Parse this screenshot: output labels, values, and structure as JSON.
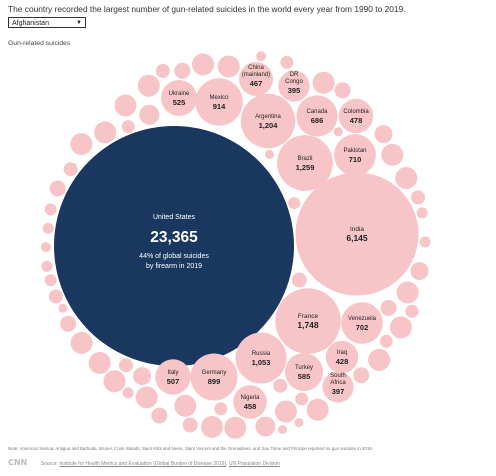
{
  "header": {
    "title": "The country recorded the largest number of gun-related suicides in the world every year from 1990 to 2019.",
    "select_value": "Afghanistan",
    "subtitle": "Gun-related suicides"
  },
  "chart_data": {
    "type": "bubble",
    "title": "The country recorded the largest number of gun-related suicides in the world every year from 1990 to 2019.",
    "value_label": "Gun-related suicides",
    "colors": {
      "highlight": "#19375f",
      "bubble": "#f7c5c8",
      "label": "#222222"
    },
    "highlight": {
      "name": "United States",
      "value": 23365,
      "value_text": "23,365",
      "note_line1": "44% of global suicides",
      "note_line2": "by firearm in 2019"
    },
    "labeled": [
      {
        "name": "India",
        "value": 6145,
        "value_text": "6,145"
      },
      {
        "name": "France",
        "value": 1748,
        "value_text": "1,748"
      },
      {
        "name": "Brazil",
        "value": 1259,
        "value_text": "1,259"
      },
      {
        "name": "Argentina",
        "value": 1204,
        "value_text": "1,204"
      },
      {
        "name": "Russia",
        "value": 1053,
        "value_text": "1,053"
      },
      {
        "name": "Mexico",
        "value": 914,
        "value_text": "914"
      },
      {
        "name": "Germany",
        "value": 899,
        "value_text": "899"
      },
      {
        "name": "Pakistan",
        "value": 710,
        "value_text": "710"
      },
      {
        "name": "Venezuela",
        "value": 702,
        "value_text": "702"
      },
      {
        "name": "Canada",
        "value": 686,
        "value_text": "686"
      },
      {
        "name": "Turkey",
        "value": 585,
        "value_text": "585"
      },
      {
        "name": "Ukraine",
        "value": 525,
        "value_text": "525"
      },
      {
        "name": "Italy",
        "value": 507,
        "value_text": "507"
      },
      {
        "name": "Colombia",
        "value": 478,
        "value_text": "478"
      },
      {
        "name": "China (mainland)",
        "line1": "China",
        "line2": "(mainland)",
        "value": 467,
        "value_text": "467"
      },
      {
        "name": "Nigeria",
        "value": 458,
        "value_text": "458"
      },
      {
        "name": "Iraq",
        "value": 428,
        "value_text": "428"
      },
      {
        "name": "South Africa",
        "line1": "South",
        "line2": "Africa",
        "value": 397,
        "value_text": "397"
      },
      {
        "name": "DR Congo",
        "line1": "DR",
        "line2": "Congo",
        "value": 395,
        "value_text": "395"
      }
    ]
  },
  "footer": {
    "note": "Note: American Samoa, Antigua and Barbuda, Brunei, Cook Islands, Saint Kitts and Nevis, Saint Vincent and the Grenadines, and Sao Tome and Principe reported no gun suicides in 2019.",
    "logo": "CNN",
    "source_prefix": "Source:",
    "source_link1": "Institute for Health Metrics and Evaluation (Global Burden of Disease 2019)",
    "source_link2": "UN Population Division"
  }
}
